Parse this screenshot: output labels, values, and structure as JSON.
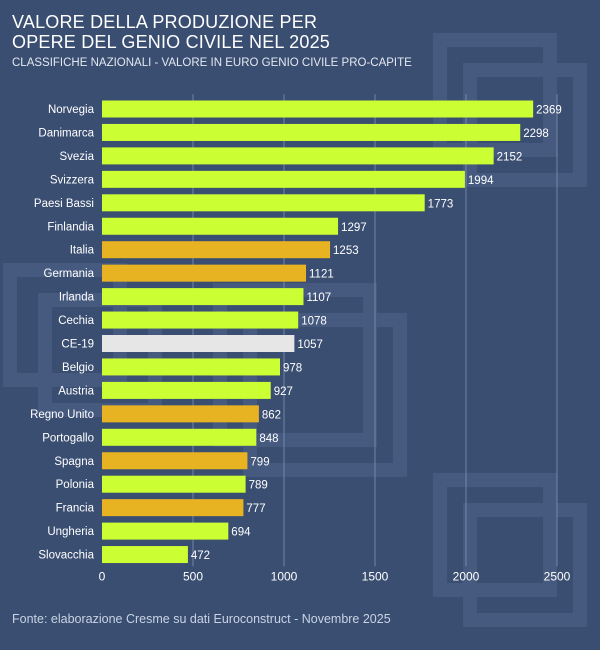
{
  "header": {
    "title_line1": "VALORE DELLA PRODUZIONE PER",
    "title_line2": "OPERE DEL GENIO CIVILE NEL 2025",
    "subtitle": "CLASSIFICHE NAZIONALI - VALORE IN EURO GENIO CIVILE PRO-CAPITE"
  },
  "footer": {
    "source": "Fonte: elaborazione Cresme su dati Euroconstruct - Novembre 2025"
  },
  "colors": {
    "background": "#3a4e72",
    "bar_default": "#ccff33",
    "bar_highlight": "#e8b322",
    "bar_average": "#e6e6e6",
    "text": "#ffffff",
    "grid": "#8a9bb8"
  },
  "chart_data": {
    "type": "bar",
    "orientation": "horizontal",
    "categories": [
      "Norvegia",
      "Danimarca",
      "Svezia",
      "Svizzera",
      "Paesi Bassi",
      "Finlandia",
      "Italia",
      "Germania",
      "Irlanda",
      "Cechia",
      "CE-19",
      "Belgio",
      "Austria",
      "Regno Unito",
      "Portogallo",
      "Spagna",
      "Polonia",
      "Francia",
      "Ungheria",
      "Slovacchia"
    ],
    "values": [
      2369,
      2298,
      2152,
      1994,
      1773,
      1297,
      1253,
      1121,
      1107,
      1078,
      1057,
      978,
      927,
      862,
      848,
      799,
      789,
      777,
      694,
      472
    ],
    "bar_groups": [
      "other",
      "other",
      "other",
      "other",
      "other",
      "other",
      "highlight",
      "highlight",
      "other",
      "other",
      "average",
      "other",
      "other",
      "highlight",
      "other",
      "highlight",
      "other",
      "highlight",
      "other",
      "other"
    ],
    "xlim": [
      0,
      2500
    ],
    "xticks": [
      0,
      500,
      1000,
      1500,
      2000,
      2500
    ],
    "grid": true,
    "xlabel": "",
    "ylabel": ""
  }
}
